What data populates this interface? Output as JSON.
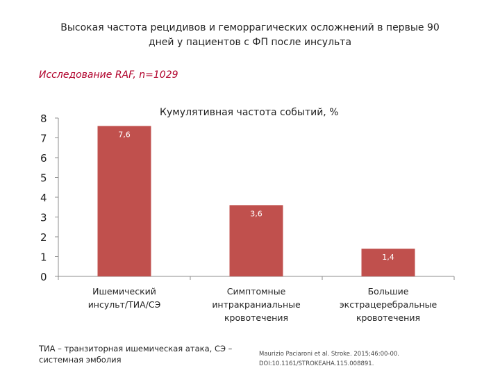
{
  "slide": {
    "title_lines": [
      "Высокая частота рецидивов и геморрагических осложнений в первые 90",
      "дней у пациентов с ФП после инсульта"
    ],
    "subtitle": "Исследование RAF, n=1029",
    "footnote_lines": [
      "ТИА – транзиторная ишемическая атака, СЭ –",
      "системная эмболия"
    ],
    "reference_lines": [
      "Maurizio Paciaroni et al. Stroke. 2015;46:00-00.",
      "DOI:10.1161/STROKEAHA.115.008891."
    ]
  },
  "chart_data": {
    "type": "bar",
    "title": "Кумулятивная частота событий, %",
    "categories": [
      [
        "Ишемический",
        "инсульт/ТИА/СЭ"
      ],
      [
        "Симптомные",
        "интракраниальные",
        "кровотечения"
      ],
      [
        "Большие",
        "экстрацеребральные",
        "кровотечения"
      ]
    ],
    "values": [
      7.6,
      3.6,
      1.4
    ],
    "data_labels": [
      "7,6",
      "3,6",
      "1,4"
    ],
    "ylim": [
      0,
      8
    ],
    "yticks": [
      "0",
      "1",
      "2",
      "3",
      "4",
      "5",
      "6",
      "7",
      "8"
    ],
    "grid": false,
    "bar_color": "#c0504d",
    "label_color": "#ffffff"
  }
}
